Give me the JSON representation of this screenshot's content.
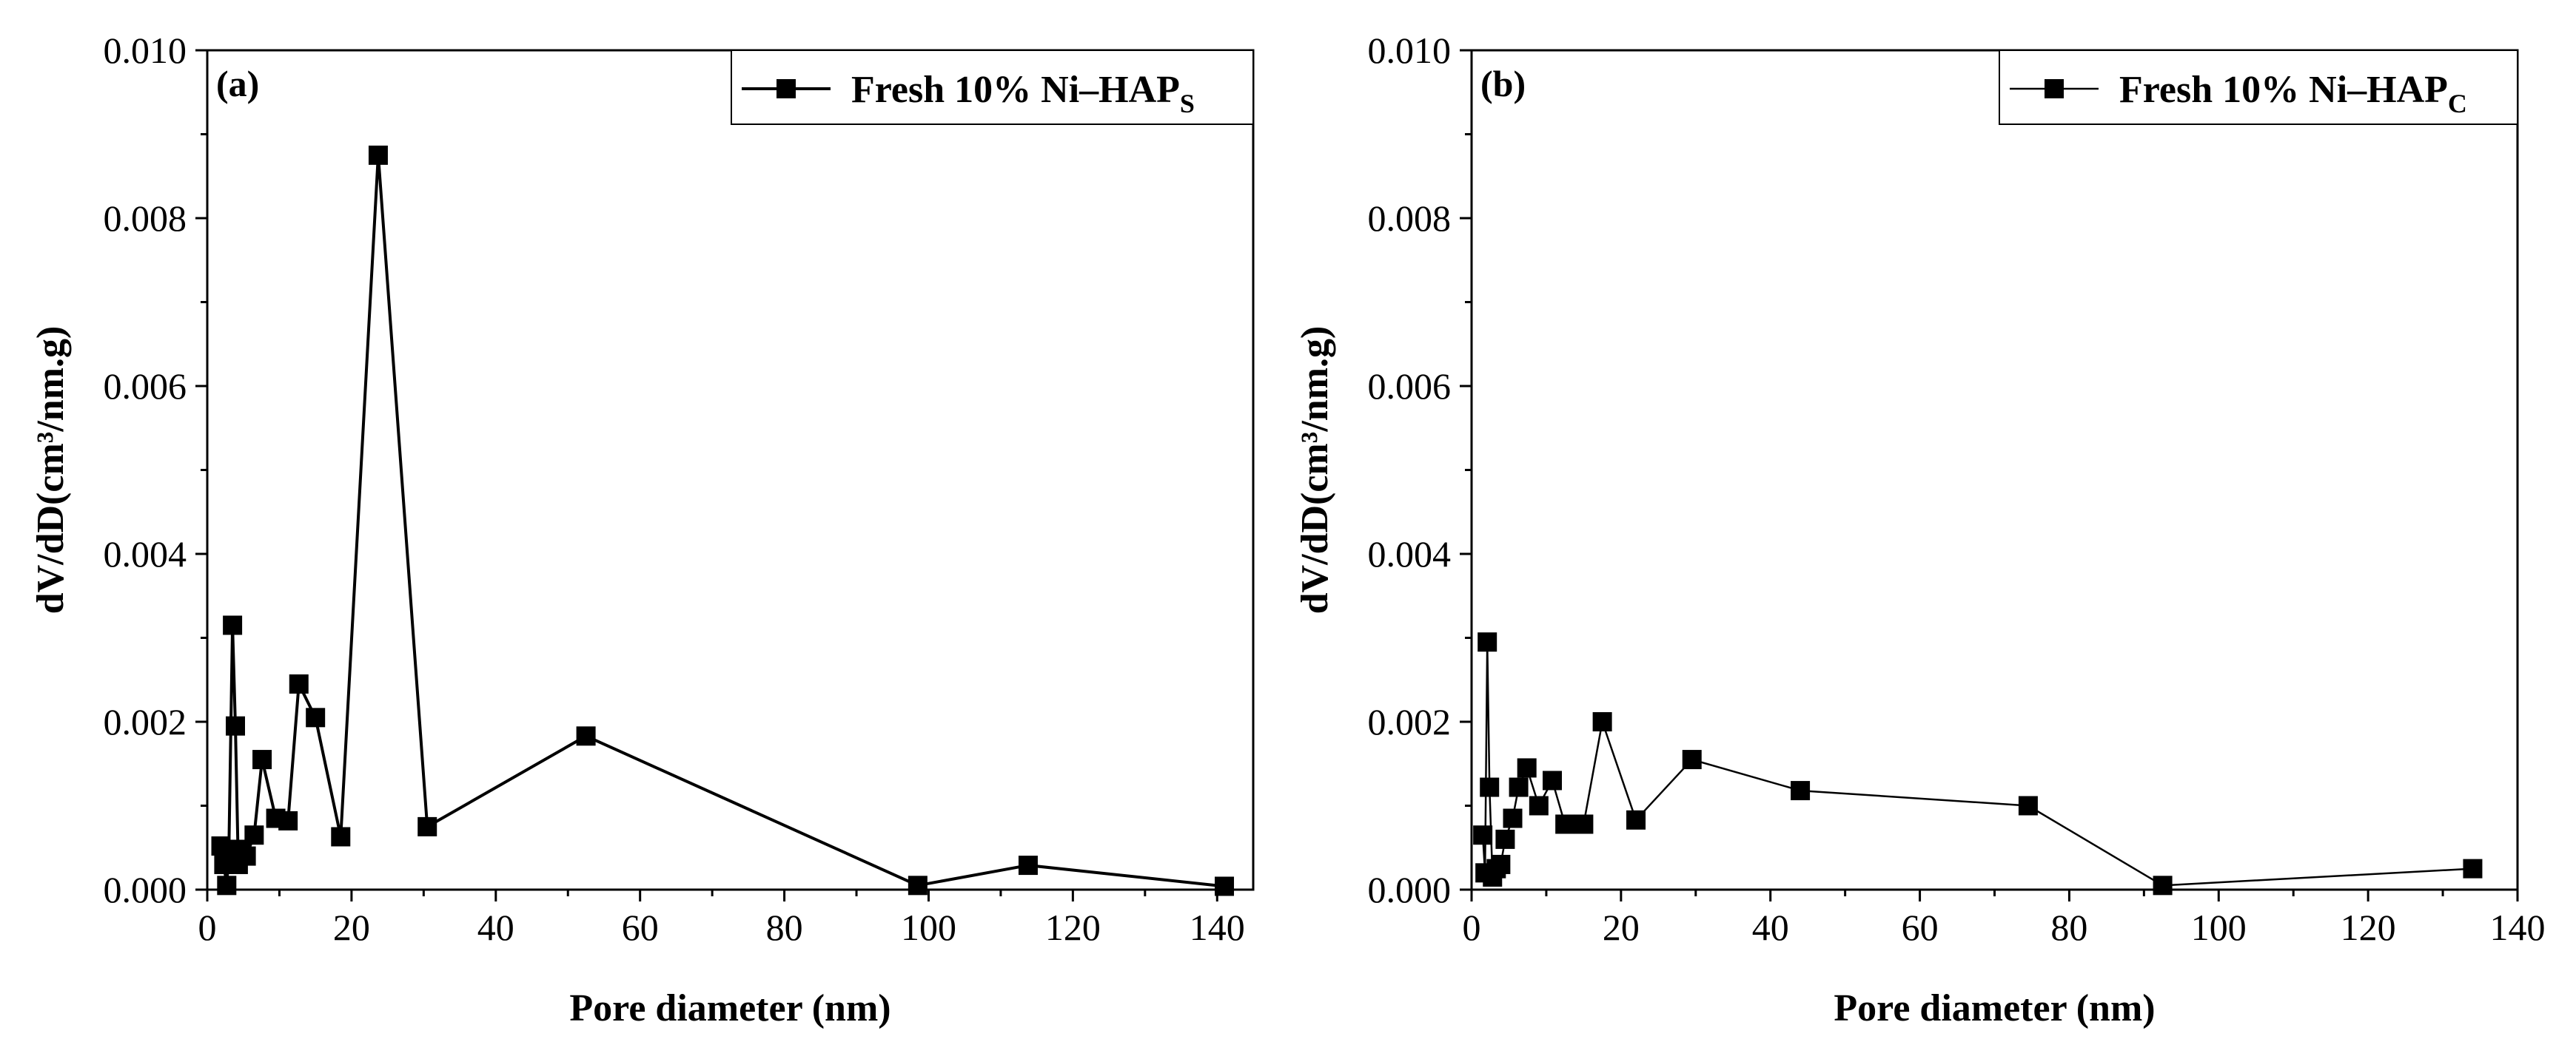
{
  "chart_data": [
    {
      "type": "line",
      "panel_label": "(a)",
      "xlabel": "Pore diameter (nm)",
      "ylabel": "dV/dD(cm³/nm.g)",
      "xlim": [
        0,
        145
      ],
      "ylim": [
        0,
        0.01
      ],
      "xticks": [
        0,
        20,
        40,
        60,
        80,
        100,
        120,
        140
      ],
      "yticks": [
        "0.000",
        "0.002",
        "0.004",
        "0.006",
        "0.008",
        "0.010"
      ],
      "legend": {
        "text": "Fresh 10% Ni–HAP",
        "subscript": "S",
        "placement": "top-right"
      },
      "series": [
        {
          "name": "Fresh 10% Ni–HAP_S",
          "marker": "square",
          "points": [
            [
              1.9,
              0.00052
            ],
            [
              2.3,
              0.0003
            ],
            [
              2.7,
              5e-05
            ],
            [
              3.0,
              0.00048
            ],
            [
              3.5,
              0.00315
            ],
            [
              3.9,
              0.00195
            ],
            [
              4.3,
              0.0003
            ],
            [
              4.8,
              0.00048
            ],
            [
              5.4,
              0.0004
            ],
            [
              6.5,
              0.00065
            ],
            [
              7.6,
              0.00155
            ],
            [
              9.5,
              0.00085
            ],
            [
              11.2,
              0.00082
            ],
            [
              12.7,
              0.00245
            ],
            [
              15.0,
              0.00205
            ],
            [
              18.5,
              0.00063
            ],
            [
              23.7,
              0.00875
            ],
            [
              30.5,
              0.00075
            ],
            [
              52.5,
              0.00183
            ],
            [
              98.5,
              5e-05
            ],
            [
              113.8,
              0.00029
            ],
            [
              141.0,
              4e-05
            ]
          ]
        }
      ]
    },
    {
      "type": "line",
      "panel_label": "(b)",
      "xlabel": "Pore diameter (nm)",
      "ylabel": "dV/dD(cm³/nm.g)",
      "xlim": [
        0,
        140
      ],
      "ylim": [
        0,
        0.01
      ],
      "xticks": [
        0,
        20,
        40,
        60,
        80,
        100,
        120,
        140
      ],
      "yticks": [
        "0.000",
        "0.002",
        "0.004",
        "0.006",
        "0.008",
        "0.010"
      ],
      "legend": {
        "text": "Fresh 10% Ni–HAP",
        "subscript": "C",
        "placement": "top-right"
      },
      "series": [
        {
          "name": "Fresh 10% Ni–HAP_C",
          "marker": "square",
          "points": [
            [
              1.5,
              0.00065
            ],
            [
              1.8,
              0.0002
            ],
            [
              2.1,
              0.00295
            ],
            [
              2.4,
              0.00122
            ],
            [
              2.8,
              0.00015
            ],
            [
              3.3,
              0.00025
            ],
            [
              3.9,
              0.0003
            ],
            [
              4.5,
              0.0006
            ],
            [
              5.5,
              0.00085
            ],
            [
              6.3,
              0.00122
            ],
            [
              7.4,
              0.00145
            ],
            [
              9.0,
              0.001
            ],
            [
              10.8,
              0.0013
            ],
            [
              12.5,
              0.00078
            ],
            [
              15.0,
              0.00078
            ],
            [
              17.5,
              0.002
            ],
            [
              22.0,
              0.00083
            ],
            [
              29.5,
              0.00155
            ],
            [
              44.0,
              0.00118
            ],
            [
              74.5,
              0.001
            ],
            [
              92.5,
              5e-05
            ],
            [
              134.0,
              0.00025
            ]
          ]
        }
      ]
    }
  ]
}
